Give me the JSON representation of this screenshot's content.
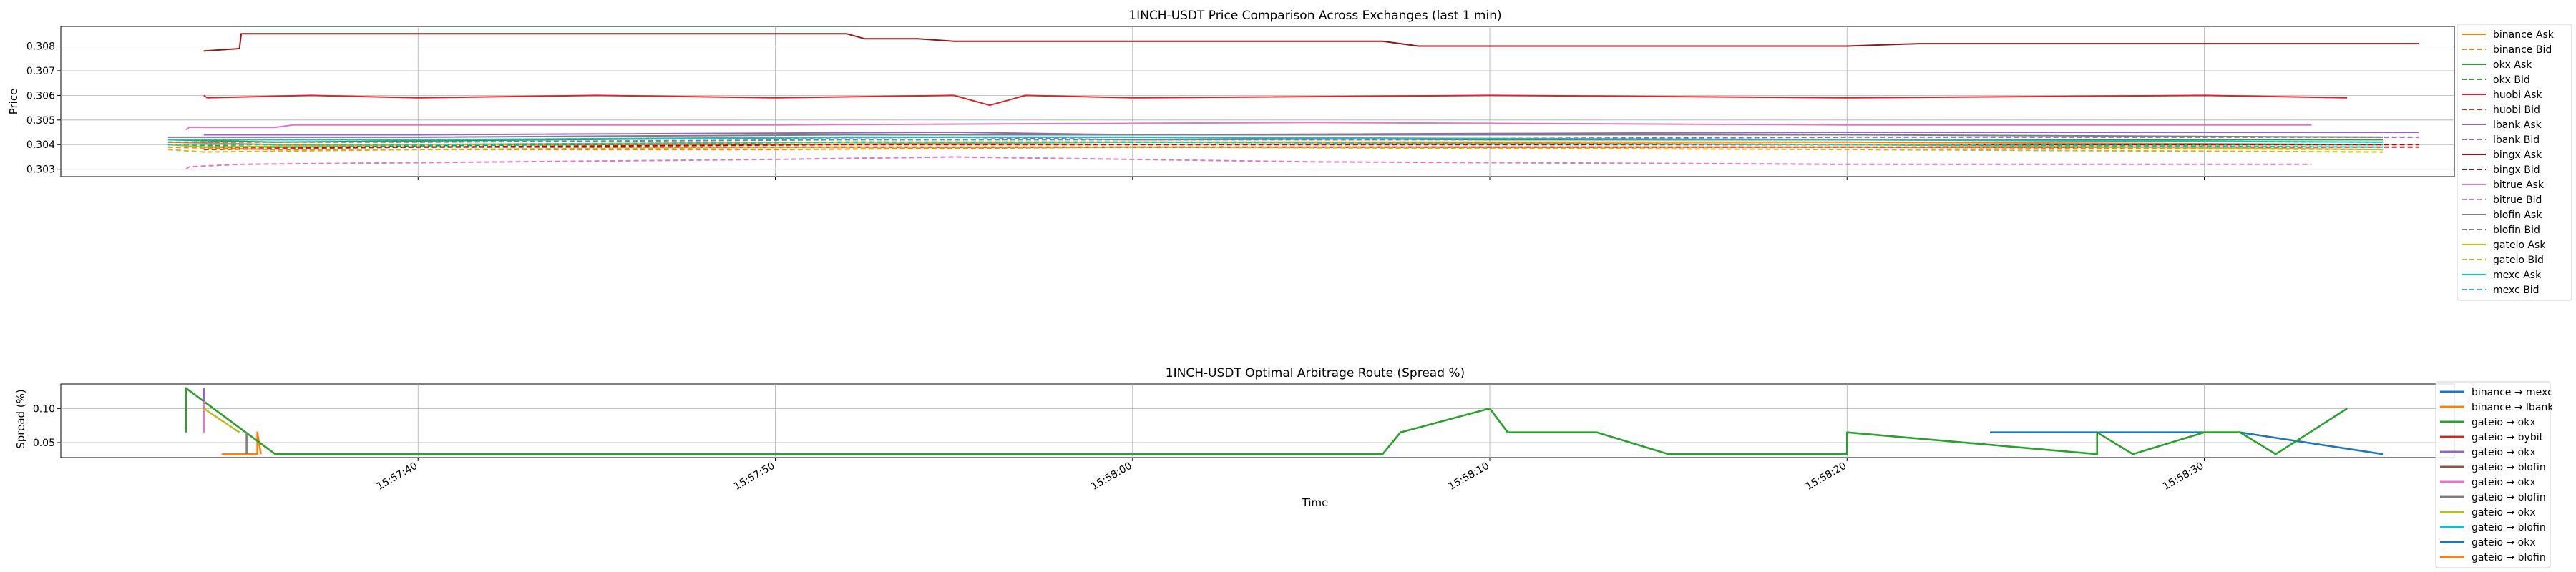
{
  "chart_data": [
    {
      "type": "line",
      "title": "1INCH-USDT Price Comparison Across Exchanges (last 1 min)",
      "ylabel": "Price",
      "xlabel": "",
      "ylim": [
        0.3027,
        0.3088
      ],
      "yticks": [
        0.303,
        0.304,
        0.305,
        0.306,
        0.307,
        0.308
      ],
      "ytick_labels": [
        "0.303",
        "0.304",
        "0.305",
        "0.306",
        "0.307",
        "0.308"
      ],
      "xlim": [
        "15:57:30",
        "15:58:37"
      ],
      "grid": true,
      "legend": "right",
      "series": [
        {
          "name": "binance Ask",
          "color": "#ff7f0e",
          "dash": false,
          "x": [
            "15:57:33",
            "15:57:36",
            "15:57:50",
            "15:58:00",
            "15:58:20",
            "15:58:35"
          ],
          "y": [
            0.3041,
            0.304,
            0.304,
            0.3041,
            0.3041,
            0.304
          ]
        },
        {
          "name": "binance Bid",
          "color": "#ff7f0e",
          "dash": true,
          "x": [
            "15:57:33",
            "15:57:36",
            "15:57:50",
            "15:58:00",
            "15:58:20",
            "15:58:35"
          ],
          "y": [
            0.3039,
            0.3038,
            0.3038,
            0.3039,
            0.3039,
            0.3038
          ]
        },
        {
          "name": "okx Ask",
          "color": "#2ca02c",
          "dash": false,
          "x": [
            "15:57:33",
            "15:57:36",
            "15:57:52",
            "15:58:00",
            "15:58:10",
            "15:58:20",
            "15:58:35"
          ],
          "y": [
            0.3042,
            0.3041,
            0.3043,
            0.3043,
            0.3042,
            0.3042,
            0.3042
          ]
        },
        {
          "name": "okx Bid",
          "color": "#2ca02c",
          "dash": true,
          "x": [
            "15:57:33",
            "15:57:36",
            "15:57:52",
            "15:58:00",
            "15:58:20",
            "15:58:35"
          ],
          "y": [
            0.304,
            0.3039,
            0.3041,
            0.3041,
            0.304,
            0.304
          ]
        },
        {
          "name": "huobi Ask",
          "color": "#d62728",
          "dash": false,
          "x": [
            "15:57:34",
            "15:57:34.1",
            "15:57:37",
            "15:57:40",
            "15:57:45",
            "15:57:50",
            "15:57:55",
            "15:57:56",
            "15:57:57",
            "15:58:00",
            "15:58:10",
            "15:58:20",
            "15:58:30",
            "15:58:34"
          ],
          "y": [
            0.306,
            0.3059,
            0.306,
            0.3059,
            0.306,
            0.3059,
            0.306,
            0.3056,
            0.306,
            0.3059,
            0.306,
            0.3059,
            0.306,
            0.3059
          ]
        },
        {
          "name": "huobi Bid",
          "color": "#d62728",
          "dash": true,
          "x": [
            "15:57:34",
            "15:57:40",
            "15:57:52",
            "15:58:00",
            "15:58:20",
            "15:58:36"
          ],
          "y": [
            0.3038,
            0.3039,
            0.3039,
            0.3039,
            0.3039,
            0.3039
          ]
        },
        {
          "name": "lbank Ask",
          "color": "#9467bd",
          "dash": false,
          "x": [
            "15:57:34",
            "15:57:40",
            "15:57:55",
            "15:58:00",
            "15:58:20",
            "15:58:36"
          ],
          "y": [
            0.3044,
            0.3044,
            0.3045,
            0.3044,
            0.3045,
            0.3045
          ]
        },
        {
          "name": "lbank Bid",
          "color": "#9467bd",
          "dash": true,
          "x": [
            "15:57:34",
            "15:57:40",
            "15:57:55",
            "15:58:00",
            "15:58:20",
            "15:58:36"
          ],
          "y": [
            0.3042,
            0.3042,
            0.3043,
            0.3042,
            0.3043,
            0.3043
          ]
        },
        {
          "name": "bingx Ask",
          "color": "#8c1a1a",
          "dash": false,
          "x": [
            "15:57:34",
            "15:57:35",
            "15:57:35.05",
            "15:57:52",
            "15:57:52.5",
            "15:57:54",
            "15:57:55",
            "15:58:07",
            "15:58:08",
            "15:58:20",
            "15:58:22",
            "15:58:36"
          ],
          "y": [
            0.3078,
            0.3079,
            0.3085,
            0.3085,
            0.3083,
            0.3083,
            0.3082,
            0.3082,
            0.308,
            0.308,
            0.3081,
            0.3081
          ]
        },
        {
          "name": "bingx Bid",
          "color": "#8c1a1a",
          "dash": true,
          "x": [
            "15:57:34",
            "15:57:40",
            "15:57:52",
            "15:58:00",
            "15:58:20",
            "15:58:36"
          ],
          "y": [
            0.3039,
            0.3039,
            0.304,
            0.304,
            0.304,
            0.304
          ]
        },
        {
          "name": "bitrue Ask",
          "color": "#e377c2",
          "dash": false,
          "x": [
            "15:57:33.5",
            "15:57:33.6",
            "15:57:36",
            "15:57:36.5",
            "15:57:50",
            "15:58:05",
            "15:58:20",
            "15:58:33"
          ],
          "y": [
            0.3046,
            0.3047,
            0.3047,
            0.3048,
            0.3048,
            0.3049,
            0.3048,
            0.3048
          ]
        },
        {
          "name": "bitrue Bid",
          "color": "#e377c2",
          "dash": true,
          "x": [
            "15:57:33.5",
            "15:57:33.6",
            "15:57:35",
            "15:57:50",
            "15:57:55",
            "15:58:05",
            "15:58:20",
            "15:58:33"
          ],
          "y": [
            0.303,
            0.3031,
            0.3032,
            0.3034,
            0.3035,
            0.3033,
            0.3032,
            0.3032
          ]
        },
        {
          "name": "blofin Ask",
          "color": "#7f7f7f",
          "dash": false,
          "x": [
            "15:57:33",
            "15:57:40",
            "15:57:52",
            "15:58:00",
            "15:58:20",
            "15:58:35"
          ],
          "y": [
            0.3043,
            0.3043,
            0.3044,
            0.3044,
            0.3044,
            0.3043
          ]
        },
        {
          "name": "blofin Bid",
          "color": "#7f7f7f",
          "dash": true,
          "x": [
            "15:57:33",
            "15:57:40",
            "15:57:52",
            "15:58:00",
            "15:58:20",
            "15:58:35"
          ],
          "y": [
            0.3041,
            0.3041,
            0.3042,
            0.3042,
            0.3042,
            0.3041
          ]
        },
        {
          "name": "gateio Ask",
          "color": "#bcbd22",
          "dash": false,
          "x": [
            "15:57:33",
            "15:57:34",
            "15:57:40",
            "15:57:52",
            "15:58:00",
            "15:58:20",
            "15:58:35"
          ],
          "y": [
            0.304,
            0.3039,
            0.304,
            0.3041,
            0.3041,
            0.304,
            0.3038
          ]
        },
        {
          "name": "gateio Bid",
          "color": "#bcbd22",
          "dash": true,
          "x": [
            "15:57:33",
            "15:57:34",
            "15:57:40",
            "15:57:52",
            "15:58:00",
            "15:58:20",
            "15:58:35"
          ],
          "y": [
            0.3038,
            0.3037,
            0.3038,
            0.3039,
            0.3039,
            0.3038,
            0.3037
          ]
        },
        {
          "name": "mexc Ask",
          "color": "#17becf",
          "dash": false,
          "x": [
            "15:57:33",
            "15:57:40",
            "15:57:52",
            "15:58:00",
            "15:58:20",
            "15:58:35"
          ],
          "y": [
            0.3042,
            0.3042,
            0.3043,
            0.3043,
            0.3042,
            0.3041
          ]
        },
        {
          "name": "mexc Bid",
          "color": "#17becf",
          "dash": true,
          "x": [
            "15:57:33",
            "15:57:40",
            "15:57:52",
            "15:58:00",
            "15:58:20",
            "15:58:35"
          ],
          "y": [
            0.304,
            0.304,
            0.3041,
            0.3041,
            0.304,
            0.3039
          ]
        }
      ]
    },
    {
      "type": "line",
      "title": "1INCH-USDT Optimal Arbitrage Route (Spread %)",
      "ylabel": "Spread (%)",
      "xlabel": "Time",
      "ylim": [
        0.028,
        0.136
      ],
      "yticks": [
        0.05,
        0.1
      ],
      "ytick_labels": [
        "0.05",
        "0.10"
      ],
      "xlim": [
        "15:57:30",
        "15:58:37"
      ],
      "xticks": [
        "15:57:40",
        "15:57:50",
        "15:58:00",
        "15:58:10",
        "15:58:20",
        "15:58:30"
      ],
      "xtick_labels": [
        "15:57:40",
        "15:57:50",
        "15:58:00",
        "15:58:10",
        "15:58:20",
        "15:58:30"
      ],
      "grid": true,
      "legend": "right",
      "series": [
        {
          "name": "binance → mexc",
          "color": "#1f77b4",
          "x": [
            "15:58:24",
            "15:58:31",
            "15:58:35"
          ],
          "y": [
            0.065,
            0.065,
            0.033
          ]
        },
        {
          "name": "binance → lbank",
          "color": "#ff7f0e",
          "x": [
            "15:57:34.5",
            "15:57:35.5",
            "15:57:35.5",
            "15:57:35.6"
          ],
          "y": [
            0.033,
            0.033,
            0.065,
            0.033
          ]
        },
        {
          "name": "gateio → okx",
          "color": "#2ca02c",
          "x": [
            "15:57:33.5",
            "15:57:33.5",
            "15:57:36",
            "15:58:07",
            "15:58:07.5",
            "15:58:10",
            "15:58:10.5",
            "15:58:13",
            "15:58:15",
            "15:58:20",
            "15:58:20",
            "15:58:27",
            "15:58:27",
            "15:58:28",
            "15:58:30",
            "15:58:31",
            "15:58:32",
            "15:58:34"
          ],
          "y": [
            0.065,
            0.13,
            0.033,
            0.033,
            0.065,
            0.1,
            0.065,
            0.065,
            0.033,
            0.033,
            0.065,
            0.033,
            0.065,
            0.033,
            0.065,
            0.065,
            0.033,
            0.1
          ]
        },
        {
          "name": "gateio → bybit",
          "color": "#d62728",
          "x": [],
          "y": []
        },
        {
          "name": "gateio → okx",
          "color": "#9467bd",
          "x": [
            "15:57:34",
            "15:57:34"
          ],
          "y": [
            0.065,
            0.13
          ]
        },
        {
          "name": "gateio → blofin",
          "color": "#8c564b",
          "x": [],
          "y": []
        },
        {
          "name": "gateio → okx",
          "color": "#e377c2",
          "x": [
            "15:57:34",
            "15:57:34"
          ],
          "y": [
            0.065,
            0.11
          ]
        },
        {
          "name": "gateio → blofin",
          "color": "#7f7f7f",
          "x": [
            "15:57:35.2",
            "15:57:35.2"
          ],
          "y": [
            0.033,
            0.065
          ]
        },
        {
          "name": "gateio → okx",
          "color": "#bcbd22",
          "x": [
            "15:57:34",
            "15:57:35",
            "15:57:35"
          ],
          "y": [
            0.1,
            0.065,
            0.065
          ]
        },
        {
          "name": "gateio → blofin",
          "color": "#17becf",
          "x": [],
          "y": []
        },
        {
          "name": "gateio → okx",
          "color": "#1f77b4",
          "x": [],
          "y": []
        },
        {
          "name": "gateio → blofin",
          "color": "#ff7f0e",
          "x": [],
          "y": []
        }
      ]
    }
  ]
}
